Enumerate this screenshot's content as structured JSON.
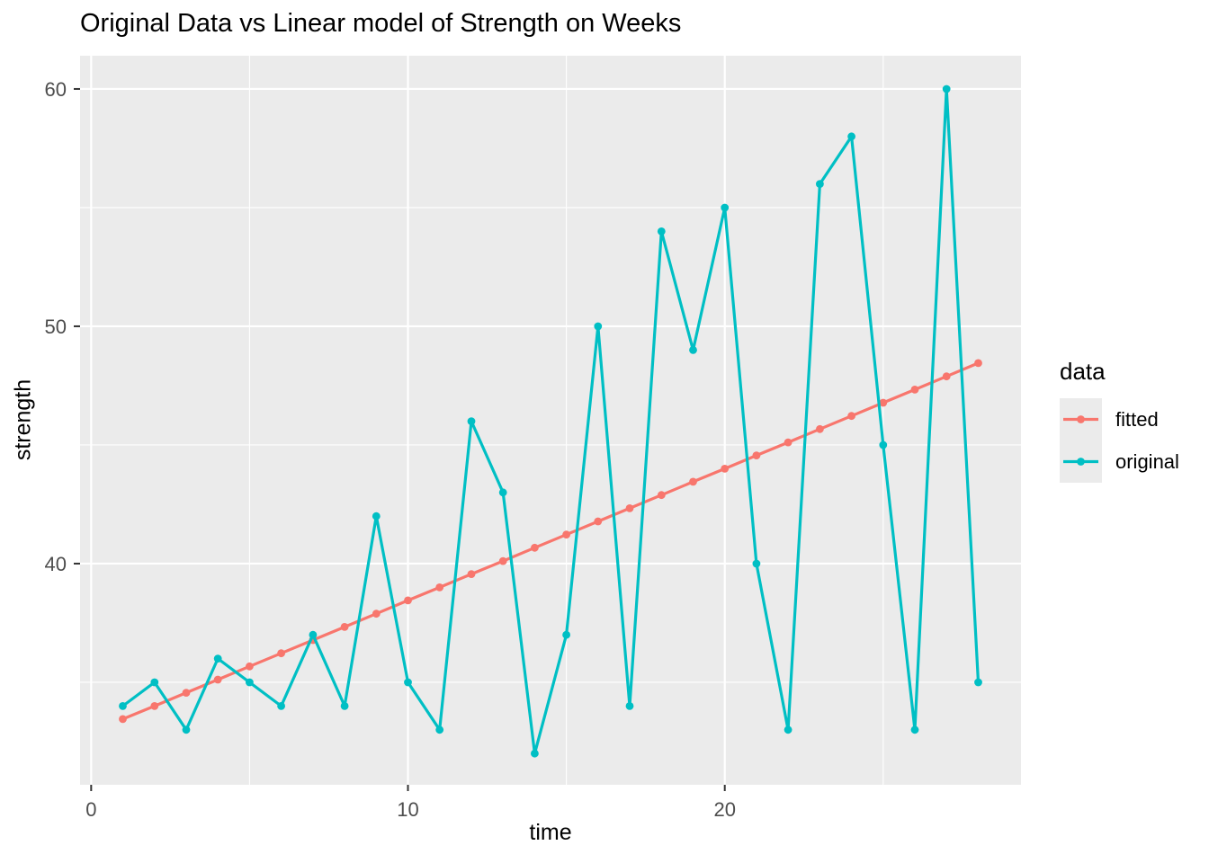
{
  "figure": {
    "title": "Original Data vs Linear model of Strength on Weeks",
    "background_color": "#FFFFFF",
    "panel_background_color": "#EBEBEB",
    "grid_color": "#FFFFFF",
    "tick_mark_color": "#333333",
    "tick_label_color": "#4D4D4D",
    "text_color": "#000000"
  },
  "legend": {
    "title": "data",
    "position": "right",
    "entries": [
      {
        "label": "fitted",
        "color": "#F8766D"
      },
      {
        "label": "original",
        "color": "#00BFC4"
      }
    ]
  },
  "chart_data": {
    "type": "line",
    "title": "Original Data vs Linear model of Strength on Weeks",
    "xlabel": "time",
    "ylabel": "strength",
    "x": [
      1,
      2,
      3,
      4,
      5,
      6,
      7,
      8,
      9,
      10,
      11,
      12,
      13,
      14,
      15,
      16,
      17,
      18,
      19,
      20,
      21,
      22,
      23,
      24,
      25,
      26,
      27,
      28
    ],
    "series": [
      {
        "name": "fitted",
        "color": "#F8766D",
        "values": [
          33.45,
          34.0,
          34.56,
          35.11,
          35.67,
          36.22,
          36.78,
          37.33,
          37.89,
          38.45,
          39.0,
          39.56,
          40.11,
          40.67,
          41.22,
          41.78,
          42.33,
          42.89,
          43.45,
          44.0,
          44.56,
          45.11,
          45.67,
          46.22,
          46.78,
          47.33,
          47.89,
          48.45
        ]
      },
      {
        "name": "original",
        "color": "#00BFC4",
        "values": [
          34,
          35,
          33,
          36,
          35,
          34,
          37,
          34,
          42,
          35,
          33,
          46,
          43,
          32,
          37,
          50,
          34,
          54,
          49,
          55,
          40,
          33,
          56,
          58,
          45,
          33,
          60,
          35
        ]
      }
    ],
    "x_domain": [
      -0.35,
      29.35
    ],
    "y_domain": [
      30.68,
      61.4
    ],
    "x_ticks": [
      0,
      10,
      20
    ],
    "x_minor_ticks": [
      5,
      15,
      25
    ],
    "y_ticks": [
      40,
      50,
      60
    ],
    "y_minor_ticks": [
      35,
      45,
      55
    ],
    "grid": true,
    "legend_position": "right"
  }
}
